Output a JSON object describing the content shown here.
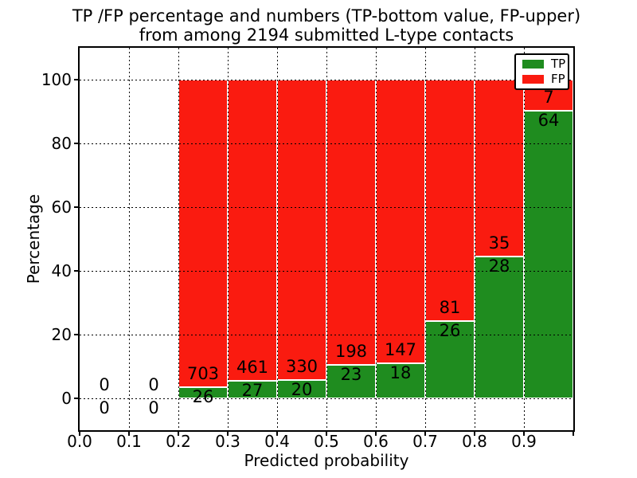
{
  "chart_data": {
    "type": "bar",
    "stacked": true,
    "normalized": "each drawn bar totals 100 percent; printed numbers are raw counts",
    "title_line1": "TP /FP percentage and numbers (TP-bottom value, FP-upper)",
    "title_line2": "from among 2194 submitted L-type contacts",
    "xlabel": "Predicted probability",
    "ylabel": "Percentage",
    "xlim": [
      0.0,
      1.0
    ],
    "ylim": [
      -10,
      110
    ],
    "bin_width": 0.1,
    "xticks": [
      0.0,
      0.1,
      0.2,
      0.3,
      0.4,
      0.5,
      0.6,
      0.7,
      0.8,
      0.9
    ],
    "yticks": [
      0,
      20,
      40,
      60,
      80,
      100
    ],
    "grid": {
      "linestyle": "dotted",
      "color": "#000000",
      "on": true
    },
    "legend": {
      "position": "upper-right",
      "entries": [
        {
          "label": "TP",
          "color": "#1f8c1f"
        },
        {
          "label": "FP",
          "color": "#fa1b10"
        }
      ]
    },
    "categories": [
      0.0,
      0.1,
      0.2,
      0.3,
      0.4,
      0.5,
      0.6,
      0.7,
      0.8,
      0.9
    ],
    "series": [
      {
        "name": "TP",
        "color": "#1f8c1f",
        "values": [
          0,
          0,
          26,
          27,
          20,
          23,
          18,
          26,
          28,
          64
        ]
      },
      {
        "name": "FP",
        "color": "#fa1b10",
        "values": [
          0,
          0,
          703,
          461,
          330,
          198,
          147,
          81,
          35,
          7
        ]
      }
    ],
    "tp_percent_heights": [
      0,
      0,
      3.6,
      5.5,
      5.7,
      10.4,
      10.9,
      24.3,
      44.4,
      90.1
    ]
  }
}
